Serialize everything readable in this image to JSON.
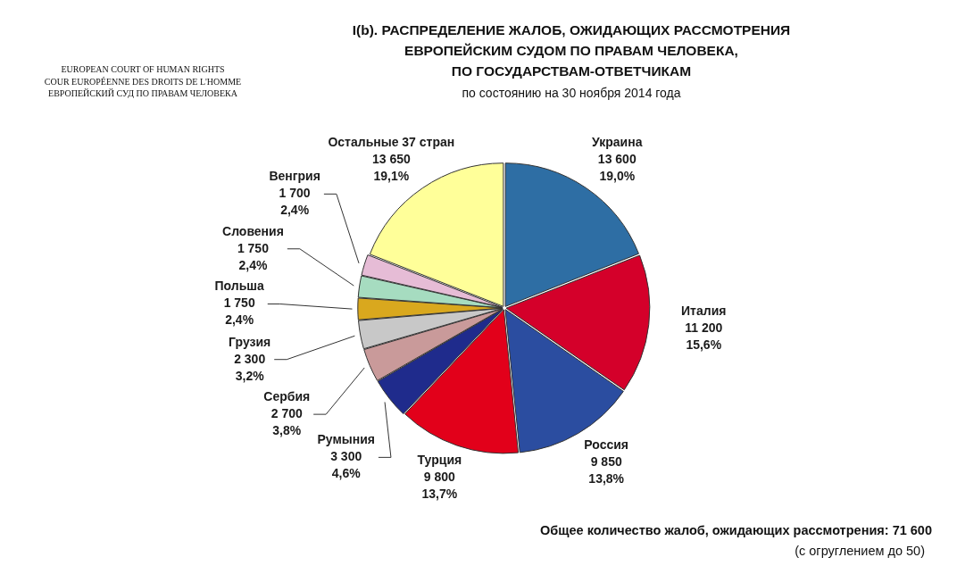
{
  "chart_data": {
    "type": "pie",
    "title": "I(b). РАСПРЕДЕЛЕНИЕ ЖАЛОБ, ОЖИДАЮЩИХ РАССМОТРЕНИЯ\nЕВРОПЕЙСКИМ СУДОМ ПО ПРАВАМ ЧЕЛОВЕКА,\nПО ГОСУДАРСТВАМ-ОТВЕТЧИКАМ",
    "subtitle": "по состоянию на 30 ноября 2014 года",
    "categories": [
      "Украина",
      "Италия",
      "Россия",
      "Турция",
      "Румыния",
      "Сербия",
      "Грузия",
      "Польша",
      "Словения",
      "Венгрия",
      "Остальные 37 стран"
    ],
    "values": [
      13600,
      11200,
      9850,
      9800,
      3300,
      2700,
      2300,
      1750,
      1750,
      1700,
      13650
    ],
    "value_labels": [
      "13 600\n19,0%",
      "11 200\n15,6%",
      "9 850\n13,8%",
      "9 800\n13,7%",
      "3 300\n4,6%",
      "2 700\n3,8%",
      "2 300\n3,2%",
      "1 750\n2,4%",
      "1 750\n2,4%",
      "1 700\n2,4%",
      "13 650\n19,1%"
    ],
    "colors": [
      "#2e6ea4",
      "#d4002a",
      "#2b4da0",
      "#e2001a",
      "#1f2b8c",
      "#c99a9a",
      "#c8c8c8",
      "#d9a81e",
      "#a6dcc0",
      "#e6bcd6",
      "#ffff99"
    ],
    "annotations": [
      "EUROPEAN COURT OF HUMAN RIGHTS\nCOUR EUROPÉENNE DES DROITS DE L'HOMME\nЕВРОПЕЙСКИЙ СУД ПО ПРАВАМ ЧЕЛОВЕКА",
      "Общее количество жалоб, ожидающих рассмотрения: 71 600",
      "(с огруглением до 50)"
    ]
  }
}
